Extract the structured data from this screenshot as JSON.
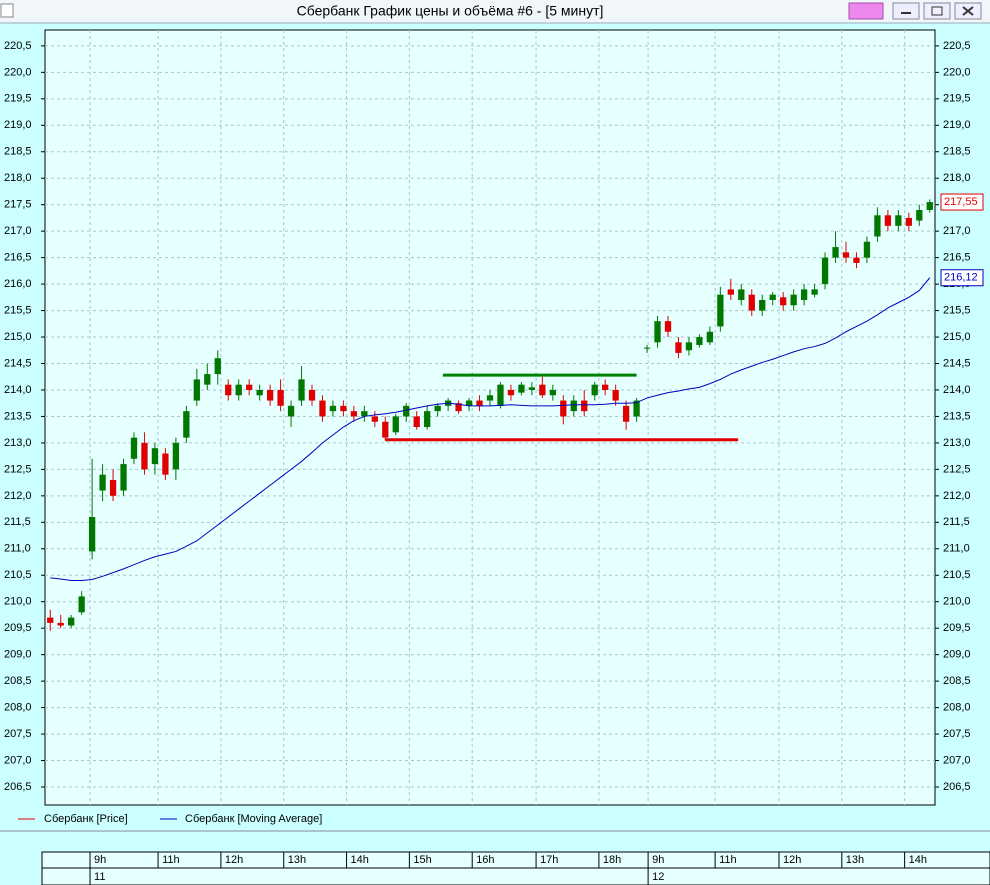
{
  "window": {
    "title": "Сбербанк График цены и объёма #6 - [5 минут]"
  },
  "chart_data": {
    "type": "candlestick",
    "grid": true,
    "xlim": [
      0,
      85
    ],
    "ylim": [
      206.16,
      220.8
    ],
    "yticks": [
      {
        "value": 206.5,
        "label": "206,5"
      },
      {
        "value": 207,
        "label": "207,0"
      },
      {
        "value": 207.5,
        "label": "207,5"
      },
      {
        "value": 208,
        "label": "208,0"
      },
      {
        "value": 208.5,
        "label": "208,5"
      },
      {
        "value": 209,
        "label": "209,0"
      },
      {
        "value": 209.5,
        "label": "209,5"
      },
      {
        "value": 210,
        "label": "210,0"
      },
      {
        "value": 210.5,
        "label": "210,5"
      },
      {
        "value": 211,
        "label": "211,0"
      },
      {
        "value": 211.5,
        "label": "211,5"
      },
      {
        "value": 212,
        "label": "212,0"
      },
      {
        "value": 212.5,
        "label": "212,5"
      },
      {
        "value": 213,
        "label": "213,0"
      },
      {
        "value": 213.5,
        "label": "213,5"
      },
      {
        "value": 214,
        "label": "214,0"
      },
      {
        "value": 214.5,
        "label": "214,5"
      },
      {
        "value": 215,
        "label": "215,0"
      },
      {
        "value": 215.5,
        "label": "215,5"
      },
      {
        "value": 216,
        "label": "216,0"
      },
      {
        "value": 216.5,
        "label": "216,5"
      },
      {
        "value": 217,
        "label": "217,0"
      },
      {
        "value": 217.5,
        "label": "217,5"
      },
      {
        "value": 218,
        "label": "218,0"
      },
      {
        "value": 218.5,
        "label": "218,5"
      },
      {
        "value": 219,
        "label": "219,0"
      },
      {
        "value": 219.5,
        "label": "219,5"
      },
      {
        "value": 220,
        "label": "220,0"
      },
      {
        "value": 220.5,
        "label": "220,5"
      }
    ],
    "xticks": [
      {
        "value": 4.3,
        "label": "9h"
      },
      {
        "value": 10.8,
        "label": "11h"
      },
      {
        "value": 16.8,
        "label": "12h"
      },
      {
        "value": 22.8,
        "label": "13h"
      },
      {
        "value": 28.8,
        "label": "14h"
      },
      {
        "value": 34.8,
        "label": "15h"
      },
      {
        "value": 40.8,
        "label": "16h"
      },
      {
        "value": 46.9,
        "label": "17h"
      },
      {
        "value": 52.9,
        "label": "18h"
      },
      {
        "value": 57.6,
        "label": "9h"
      },
      {
        "value": 64,
        "label": "11h"
      },
      {
        "value": 70.1,
        "label": "12h"
      },
      {
        "value": 76.1,
        "label": "13h"
      },
      {
        "value": 82.1,
        "label": "14h"
      }
    ],
    "day_ticks": [
      {
        "value": 4.3,
        "label": "11"
      },
      {
        "value": 57.6,
        "label": "12"
      }
    ],
    "levels": [
      {
        "value": 214.28,
        "x": [
          38,
          56.5
        ],
        "color": "#008000"
      },
      {
        "value": 213.06,
        "x": [
          32.5,
          66.2
        ],
        "color": "#e00000"
      }
    ],
    "series": [
      {
        "name": "Сбербанк [Price]",
        "color": "#e00000",
        "up_color": "#007800",
        "down_color": "#e00000",
        "last_label": "217,55",
        "ohlc": [
          [
            209.7,
            209.85,
            209.45,
            209.6
          ],
          [
            209.6,
            209.75,
            209.5,
            209.55
          ],
          [
            209.55,
            209.75,
            209.5,
            209.7
          ],
          [
            209.8,
            210.2,
            209.75,
            210.1
          ],
          [
            210.95,
            212.7,
            210.8,
            211.6
          ],
          [
            212.1,
            212.6,
            211.9,
            212.4
          ],
          [
            212.3,
            212.5,
            211.9,
            212.0
          ],
          [
            212.1,
            212.7,
            212.0,
            212.6
          ],
          [
            212.7,
            213.2,
            212.6,
            213.1
          ],
          [
            213.0,
            213.2,
            212.4,
            212.5
          ],
          [
            212.6,
            213.0,
            212.4,
            212.9
          ],
          [
            212.8,
            212.9,
            212.3,
            212.4
          ],
          [
            212.5,
            213.1,
            212.3,
            213.0
          ],
          [
            213.1,
            213.7,
            213.0,
            213.6
          ],
          [
            213.8,
            214.4,
            213.7,
            214.2
          ],
          [
            214.1,
            214.5,
            214.0,
            214.3
          ],
          [
            214.3,
            214.75,
            214.1,
            214.6
          ],
          [
            214.1,
            214.2,
            213.8,
            213.9
          ],
          [
            213.9,
            214.2,
            213.8,
            214.1
          ],
          [
            214.1,
            214.2,
            213.9,
            214.0
          ],
          [
            213.9,
            214.1,
            213.8,
            214.0
          ],
          [
            214.0,
            214.1,
            213.7,
            213.8
          ],
          [
            214.0,
            214.2,
            213.6,
            213.7
          ],
          [
            213.5,
            213.8,
            213.3,
            213.7
          ],
          [
            213.8,
            214.45,
            213.7,
            214.2
          ],
          [
            214.0,
            214.1,
            213.7,
            213.8
          ],
          [
            213.8,
            213.9,
            213.4,
            213.5
          ],
          [
            213.6,
            213.8,
            213.5,
            213.7
          ],
          [
            213.7,
            213.8,
            213.5,
            213.6
          ],
          [
            213.6,
            213.7,
            213.4,
            213.5
          ],
          [
            213.5,
            213.7,
            213.4,
            213.6
          ],
          [
            213.5,
            213.6,
            213.3,
            213.4
          ],
          [
            213.4,
            213.5,
            213.05,
            213.1
          ],
          [
            213.2,
            213.55,
            213.15,
            213.5
          ],
          [
            213.5,
            213.75,
            213.4,
            213.7
          ],
          [
            213.5,
            213.6,
            213.25,
            213.3
          ],
          [
            213.3,
            213.7,
            213.25,
            213.6
          ],
          [
            213.6,
            213.75,
            213.5,
            213.7
          ],
          [
            213.7,
            213.85,
            213.6,
            213.8
          ],
          [
            213.75,
            213.8,
            213.55,
            213.6
          ],
          [
            213.7,
            213.85,
            213.6,
            213.8
          ],
          [
            213.8,
            213.9,
            213.6,
            213.7
          ],
          [
            213.8,
            214.0,
            213.7,
            213.9
          ],
          [
            213.7,
            214.15,
            213.65,
            214.1
          ],
          [
            214.0,
            214.1,
            213.8,
            213.9
          ],
          [
            213.95,
            214.15,
            213.9,
            214.1
          ],
          [
            214.0,
            214.15,
            213.9,
            214.05
          ],
          [
            214.1,
            214.25,
            213.85,
            213.9
          ],
          [
            213.9,
            214.1,
            213.8,
            214.0
          ],
          [
            213.8,
            213.9,
            213.35,
            213.5
          ],
          [
            213.6,
            213.9,
            213.5,
            213.8
          ],
          [
            213.8,
            214.0,
            213.5,
            213.6
          ],
          [
            213.9,
            214.15,
            213.8,
            214.1
          ],
          [
            214.1,
            214.2,
            213.9,
            214.0
          ],
          [
            214.0,
            214.1,
            213.7,
            213.8
          ],
          [
            213.7,
            213.8,
            213.25,
            213.4
          ],
          [
            213.5,
            213.85,
            213.4,
            213.8
          ],
          [
            214.8,
            214.85,
            214.7,
            214.8
          ],
          [
            214.9,
            215.4,
            214.8,
            215.3
          ],
          [
            215.3,
            215.4,
            215.0,
            215.1
          ],
          [
            214.9,
            215.0,
            214.6,
            214.7
          ],
          [
            214.75,
            215.0,
            214.65,
            214.9
          ],
          [
            214.85,
            215.05,
            214.8,
            215.0
          ],
          [
            214.9,
            215.2,
            214.85,
            215.1
          ],
          [
            215.2,
            215.95,
            215.1,
            215.8
          ],
          [
            215.9,
            216.1,
            215.7,
            215.8
          ],
          [
            215.7,
            216.0,
            215.6,
            215.9
          ],
          [
            215.8,
            215.9,
            215.4,
            215.5
          ],
          [
            215.5,
            215.8,
            215.4,
            215.7
          ],
          [
            215.7,
            215.85,
            215.6,
            215.8
          ],
          [
            215.75,
            215.85,
            215.5,
            215.6
          ],
          [
            215.6,
            215.9,
            215.5,
            215.8
          ],
          [
            215.7,
            216.0,
            215.6,
            215.9
          ],
          [
            215.8,
            216.0,
            215.75,
            215.9
          ],
          [
            216.0,
            216.6,
            215.9,
            216.5
          ],
          [
            216.5,
            217.0,
            216.4,
            216.7
          ],
          [
            216.6,
            216.8,
            216.4,
            216.5
          ],
          [
            216.5,
            216.6,
            216.3,
            216.4
          ],
          [
            216.5,
            216.9,
            216.4,
            216.8
          ],
          [
            216.9,
            217.45,
            216.8,
            217.3
          ],
          [
            217.3,
            217.4,
            217.0,
            217.1
          ],
          [
            217.1,
            217.4,
            217.0,
            217.3
          ],
          [
            217.25,
            217.35,
            217.0,
            217.1
          ],
          [
            217.2,
            217.5,
            217.1,
            217.4
          ],
          [
            217.4,
            217.6,
            217.35,
            217.55
          ]
        ]
      },
      {
        "name": "Сбербанк [Moving Average]",
        "color": "#0000c0",
        "last_label": "216,12",
        "values": [
          210.45,
          210.43,
          210.4,
          210.4,
          210.42,
          210.48,
          210.55,
          210.62,
          210.7,
          210.78,
          210.85,
          210.9,
          210.95,
          211.05,
          211.15,
          211.3,
          211.45,
          211.6,
          211.75,
          211.9,
          212.05,
          212.2,
          212.35,
          212.5,
          212.65,
          212.82,
          213.0,
          213.15,
          213.3,
          213.42,
          213.5,
          213.53,
          213.55,
          213.58,
          213.62,
          213.66,
          213.7,
          213.73,
          213.75,
          213.73,
          213.7,
          213.7,
          213.7,
          213.71,
          213.72,
          213.71,
          213.7,
          213.7,
          213.7,
          213.71,
          213.72,
          213.72,
          213.72,
          213.73,
          213.75,
          213.75,
          213.76,
          213.85,
          213.9,
          213.95,
          213.98,
          214.02,
          214.05,
          214.12,
          214.2,
          214.3,
          214.38,
          214.45,
          214.52,
          214.58,
          214.65,
          214.72,
          214.78,
          214.82,
          214.88,
          214.98,
          215.1,
          215.2,
          215.3,
          215.42,
          215.55,
          215.65,
          215.75,
          215.88,
          216.12
        ]
      }
    ]
  }
}
